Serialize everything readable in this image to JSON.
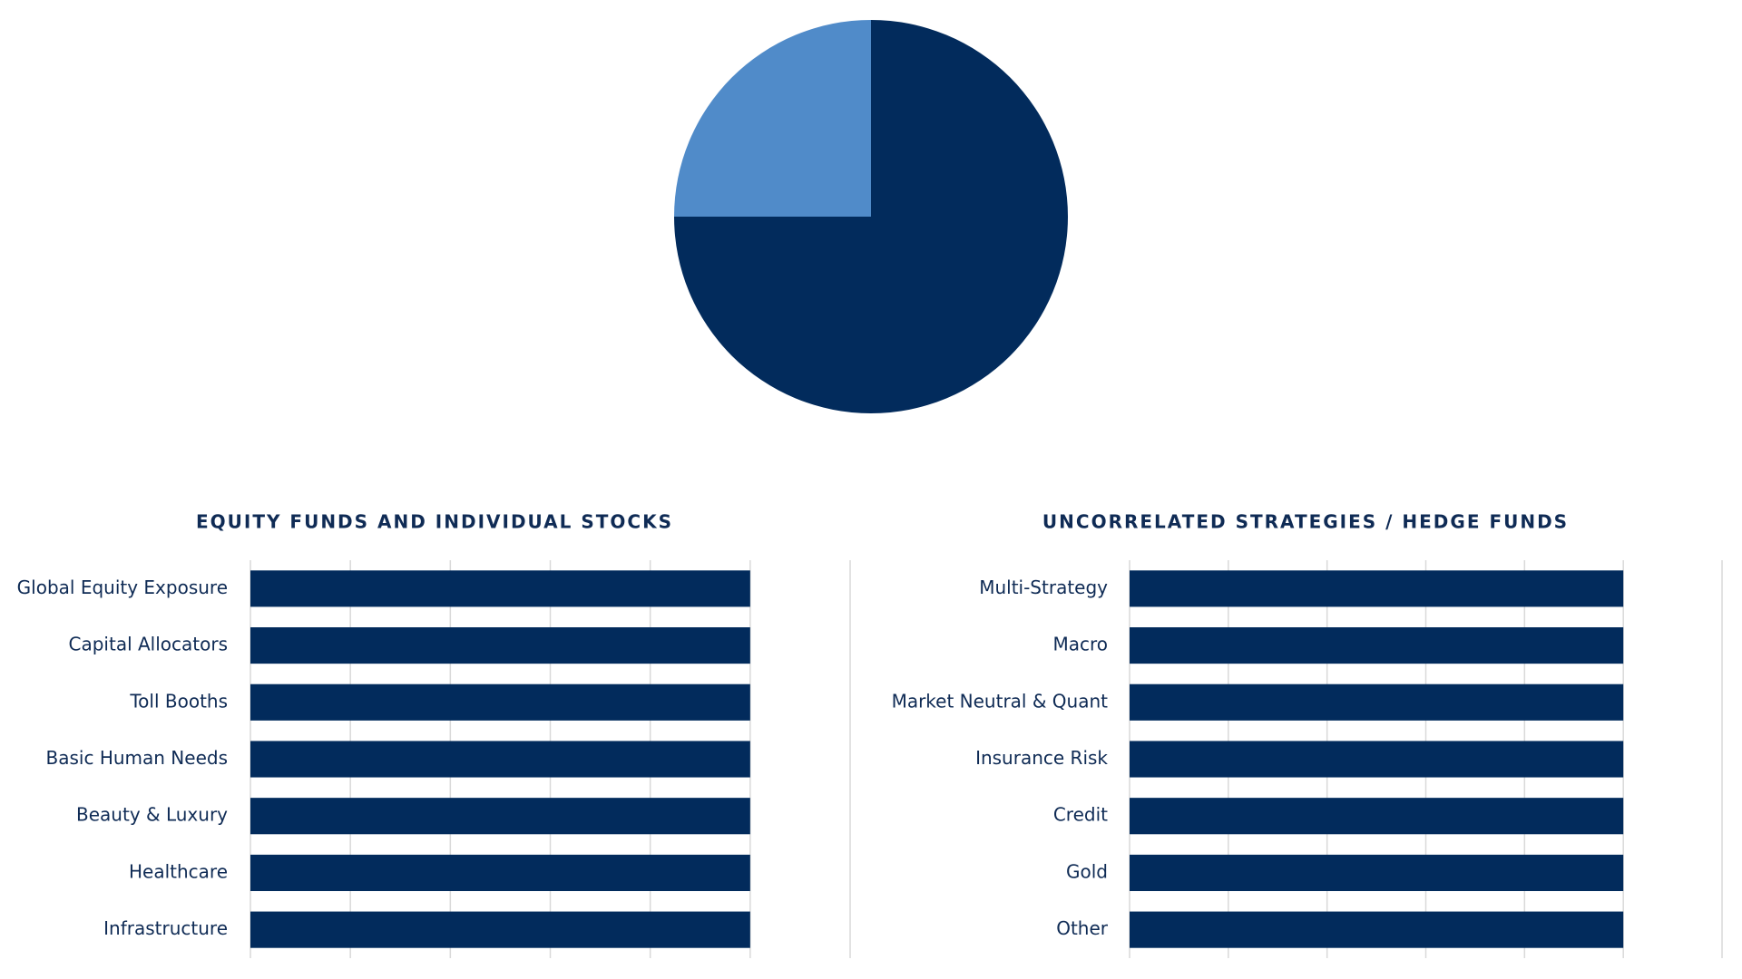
{
  "chart_data": [
    {
      "type": "pie",
      "values": [
        75,
        25
      ],
      "colors": [
        "#022b5c",
        "#508bc9"
      ]
    },
    {
      "type": "bar",
      "orientation": "horizontal",
      "title": "EQUITY FUNDS AND INDIVIDUAL STOCKS",
      "categories": [
        "Global Equity Exposure",
        "Capital Allocators",
        "Toll Booths",
        "Basic Human Needs",
        "Beauty & Luxury",
        "Healthcare",
        "Infrastructure"
      ],
      "values": [
        5,
        5,
        5,
        5,
        5,
        5,
        5
      ],
      "color": "#022b5c",
      "xlim": [
        0,
        6
      ],
      "xticks": [
        0,
        1,
        2,
        3,
        4,
        5,
        6
      ],
      "grid": true
    },
    {
      "type": "bar",
      "orientation": "horizontal",
      "title": "UNCORRELATED STRATEGIES / HEDGE FUNDS",
      "categories": [
        "Multi-Strategy",
        "Macro",
        "Market Neutral & Quant",
        "Insurance Risk",
        "Credit",
        "Gold",
        "Other"
      ],
      "values": [
        5,
        5,
        5,
        5,
        5,
        5,
        5
      ],
      "color": "#022b5c",
      "xlim": [
        0,
        6
      ],
      "xticks": [
        0,
        1,
        2,
        3,
        4,
        5,
        6
      ],
      "grid": true
    }
  ]
}
